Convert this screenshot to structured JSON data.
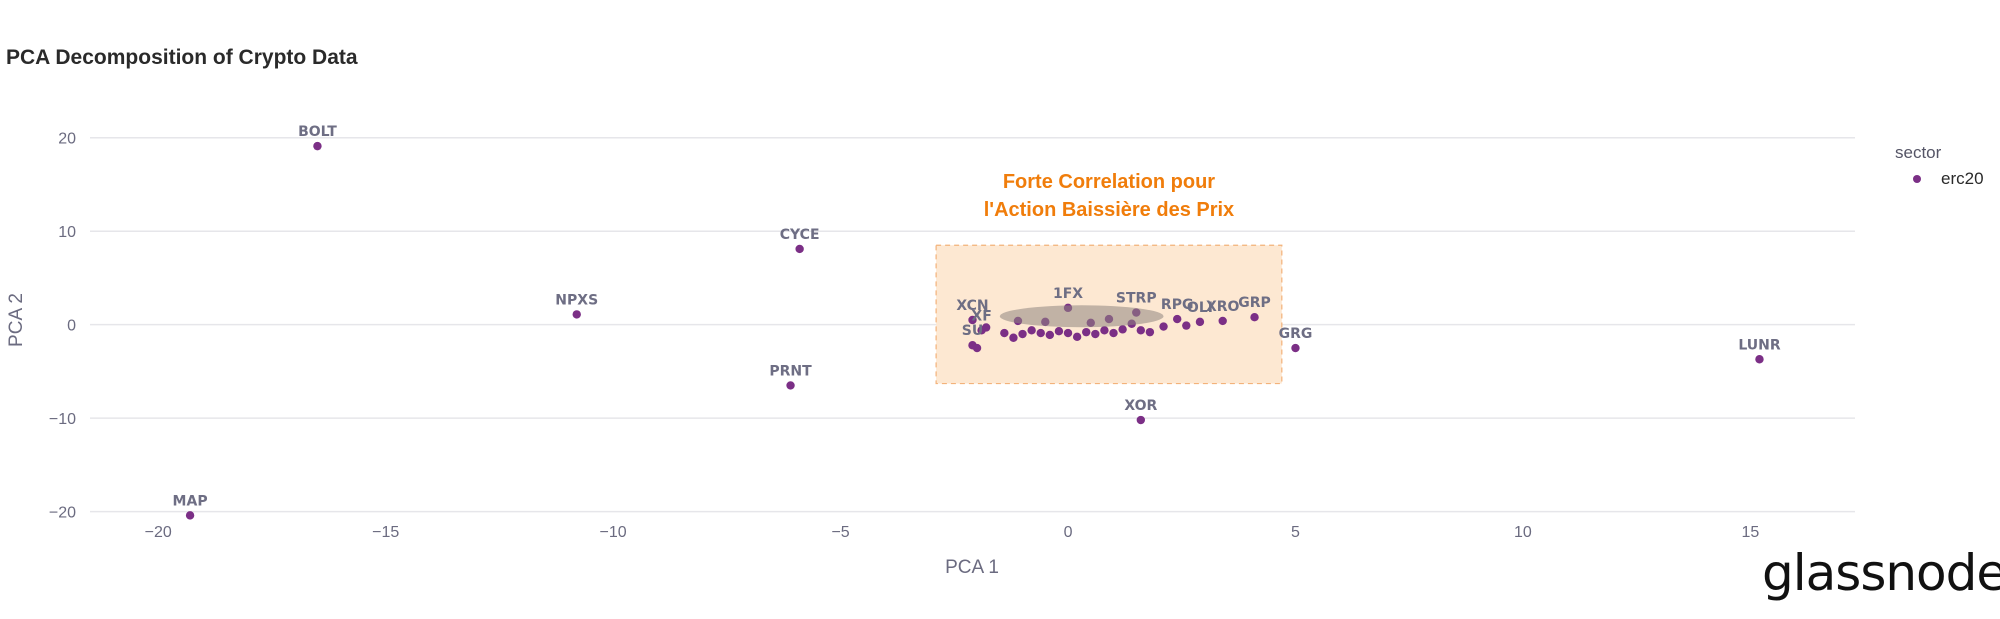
{
  "page": {
    "title": "PCA Decomposition of Crypto Data",
    "brand": "glassnode"
  },
  "legend": {
    "title": "sector",
    "items": [
      {
        "label": "erc20",
        "color": "#7b2f86"
      }
    ]
  },
  "annotation": {
    "lines": [
      "Forte Correlation pour",
      "l'Action Baissière des Prix"
    ],
    "color": "#f07d0b",
    "fill": "#fde8d2",
    "x_range": [
      -2.9,
      4.7
    ],
    "y_range": [
      -6.3,
      8.5
    ]
  },
  "chart_data": {
    "type": "scatter",
    "xlabel": "PCA 1",
    "ylabel": "PCA 2",
    "xlim": [
      -21.5,
      17.3
    ],
    "ylim": [
      -22.5,
      23.5
    ],
    "xticks": [
      -20,
      -15,
      -10,
      -5,
      0,
      5,
      10,
      15
    ],
    "yticks": [
      -20,
      -10,
      0,
      10,
      20
    ],
    "xtick_labels": [
      "−20",
      "−15",
      "−10",
      "−5",
      "0",
      "5",
      "10",
      "15"
    ],
    "ytick_labels": [
      "−20",
      "−10",
      "0",
      "10",
      "20"
    ],
    "grid": "horizontal",
    "legend_position": "top-right",
    "series": [
      {
        "name": "erc20",
        "color": "#7b2f86",
        "points": [
          {
            "label": "BOLT",
            "x": -16.5,
            "y": 19.1
          },
          {
            "label": "CYCE",
            "x": -5.9,
            "y": 8.1
          },
          {
            "label": "NPXS",
            "x": -10.8,
            "y": 1.1
          },
          {
            "label": "PRNT",
            "x": -6.1,
            "y": -6.5
          },
          {
            "label": "MAP",
            "x": -19.3,
            "y": -20.4
          },
          {
            "label": "XOR",
            "x": 1.6,
            "y": -10.2
          },
          {
            "label": "GRG",
            "x": 5.0,
            "y": -2.5
          },
          {
            "label": "LUNR",
            "x": 15.2,
            "y": -3.7
          },
          {
            "label": "GRP",
            "x": 4.1,
            "y": 0.8
          },
          {
            "label": "XRO",
            "x": 3.4,
            "y": 0.4
          },
          {
            "label": "OLI",
            "x": 2.9,
            "y": 0.3
          },
          {
            "label": "RPG",
            "x": 2.4,
            "y": 0.6
          },
          {
            "label": "STRP",
            "x": 1.5,
            "y": 1.3
          },
          {
            "label": "1FX",
            "x": 0.0,
            "y": 1.8
          },
          {
            "label": "XCN",
            "x": -2.1,
            "y": 0.5
          },
          {
            "label": "XF",
            "x": -1.9,
            "y": -0.6
          },
          {
            "label": "SU",
            "x": -2.1,
            "y": -2.2
          },
          {
            "label": "",
            "x": -2.0,
            "y": -2.5
          },
          {
            "label": "",
            "x": -1.8,
            "y": -0.3
          },
          {
            "label": "",
            "x": -1.4,
            "y": -0.9
          },
          {
            "label": "",
            "x": -1.2,
            "y": -1.4
          },
          {
            "label": "",
            "x": -1.0,
            "y": -1.0
          },
          {
            "label": "",
            "x": -0.8,
            "y": -0.6
          },
          {
            "label": "",
            "x": -0.6,
            "y": -0.9
          },
          {
            "label": "",
            "x": -0.4,
            "y": -1.1
          },
          {
            "label": "",
            "x": -0.2,
            "y": -0.7
          },
          {
            "label": "",
            "x": 0.0,
            "y": -0.9
          },
          {
            "label": "",
            "x": 0.2,
            "y": -1.3
          },
          {
            "label": "",
            "x": 0.4,
            "y": -0.8
          },
          {
            "label": "",
            "x": 0.6,
            "y": -1.0
          },
          {
            "label": "",
            "x": 0.8,
            "y": -0.6
          },
          {
            "label": "",
            "x": 1.0,
            "y": -0.9
          },
          {
            "label": "",
            "x": 1.2,
            "y": -0.5
          },
          {
            "label": "",
            "x": 1.6,
            "y": -0.6
          },
          {
            "label": "",
            "x": 1.8,
            "y": -0.8
          },
          {
            "label": "",
            "x": 2.1,
            "y": -0.2
          },
          {
            "label": "",
            "x": -0.5,
            "y": 0.3
          },
          {
            "label": "",
            "x": 0.5,
            "y": 0.2
          },
          {
            "label": "",
            "x": 1.4,
            "y": 0.1
          },
          {
            "label": "",
            "x": -1.1,
            "y": 0.4
          },
          {
            "label": "",
            "x": 0.9,
            "y": 0.6
          },
          {
            "label": "",
            "x": 2.6,
            "y": -0.1
          }
        ]
      }
    ]
  }
}
